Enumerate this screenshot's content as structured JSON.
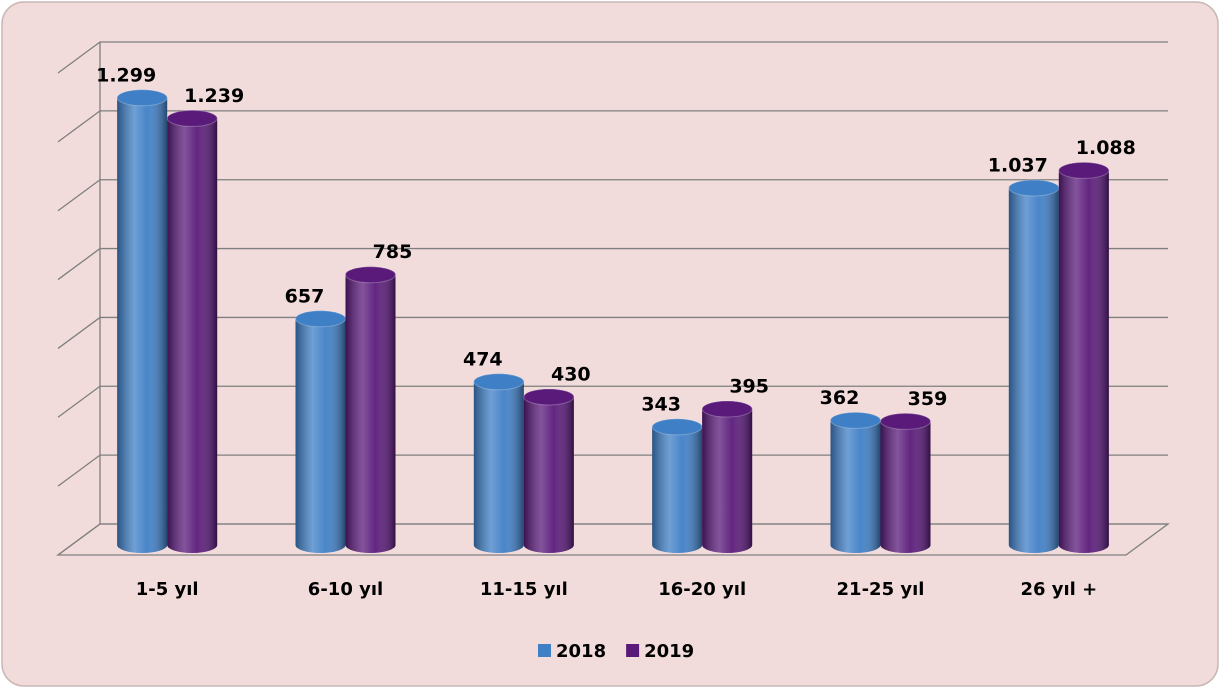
{
  "chart_data": {
    "type": "bar",
    "categories": [
      "1-5 yıl",
      "6-10 yıl",
      "11-15 yıl",
      "16-20 yıl",
      "21-25 yıl",
      "26 yıl +"
    ],
    "series": [
      {
        "name": "2018",
        "color": "#3f7fc6",
        "values": [
          1299,
          657,
          474,
          343,
          362,
          1037
        ],
        "value_labels": [
          "1.299",
          "657",
          "474",
          "343",
          "362",
          "1.037"
        ]
      },
      {
        "name": "2019",
        "color": "#5a1a7a",
        "values": [
          1239,
          785,
          430,
          395,
          359,
          1088
        ],
        "value_labels": [
          "1.239",
          "785",
          "430",
          "395",
          "359",
          "1.088"
        ]
      }
    ],
    "ylim": [
      0,
      1400
    ],
    "yticks": [
      0,
      200,
      400,
      600,
      800,
      1000,
      1200,
      1400
    ],
    "grid": true,
    "legend": "bottom"
  }
}
